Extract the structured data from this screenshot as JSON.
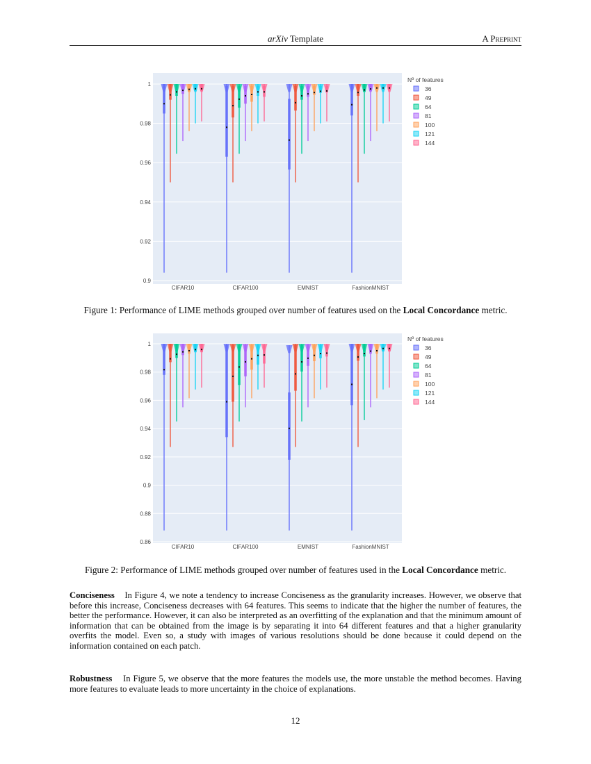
{
  "header": {
    "title_italic": "arXiv",
    "title_rest": " Template",
    "right": "A Preprint"
  },
  "chart_data": [
    {
      "type": "violin",
      "categories": [
        "CIFAR10",
        "CIFAR100",
        "EMNIST",
        "FashionMNIST"
      ],
      "legend_title": "Nº of features",
      "legend_placement": "right",
      "grid": true,
      "ylim": [
        0.9,
        1.0
      ],
      "yticks": [
        0.9,
        0.92,
        0.94,
        0.96,
        0.98,
        1
      ],
      "ytick_labels": [
        "0.9",
        "0.92",
        "0.94",
        "0.96",
        "0.98",
        "1"
      ],
      "stat_order": [
        "min",
        "q1",
        "median",
        "q3",
        "max"
      ],
      "series": [
        {
          "name": "36",
          "color": "#636efa",
          "values": [
            [
              0.904,
              0.985,
              0.99,
              1,
              1
            ],
            [
              0.904,
              0.963,
              0.978,
              0.999,
              1
            ],
            [
              0.904,
              0.9565,
              0.9715,
              0.9925,
              1
            ],
            [
              0.904,
              0.984,
              0.9895,
              1,
              1
            ]
          ]
        },
        {
          "name": "49",
          "color": "#ef553b",
          "values": [
            [
              0.95,
              0.992,
              0.9945,
              1,
              1
            ],
            [
              0.95,
              0.983,
              0.989,
              0.999,
              1
            ],
            [
              0.95,
              0.9865,
              0.9905,
              0.999,
              1
            ],
            [
              0.95,
              0.994,
              0.9957,
              1,
              1
            ]
          ]
        },
        {
          "name": "64",
          "color": "#00cc96",
          "values": [
            [
              0.9645,
              0.994,
              0.996,
              1,
              1
            ],
            [
              0.9645,
              0.988,
              0.9923,
              0.999,
              1
            ],
            [
              0.9645,
              0.992,
              0.994,
              0.999,
              1
            ],
            [
              0.9645,
              0.996,
              0.997,
              1,
              1
            ]
          ]
        },
        {
          "name": "81",
          "color": "#ab63fa",
          "values": [
            [
              0.971,
              0.995,
              0.9968,
              1,
              1
            ],
            [
              0.971,
              0.99,
              0.994,
              0.999,
              1
            ],
            [
              0.971,
              0.9935,
              0.995,
              0.999,
              1
            ],
            [
              0.971,
              0.9965,
              0.9975,
              1,
              1
            ]
          ]
        },
        {
          "name": "100",
          "color": "#ffa15a",
          "values": [
            [
              0.976,
              0.996,
              0.9973,
              1,
              1
            ],
            [
              0.976,
              0.991,
              0.9947,
              0.999,
              1
            ],
            [
              0.976,
              0.9945,
              0.9957,
              0.999,
              1
            ],
            [
              0.976,
              0.997,
              0.998,
              1,
              1
            ]
          ]
        },
        {
          "name": "121",
          "color": "#19d3f3",
          "values": [
            [
              0.98,
              0.9965,
              0.9976,
              1,
              1
            ],
            [
              0.98,
              0.994,
              0.996,
              0.999,
              1
            ],
            [
              0.98,
              0.9955,
              0.9963,
              0.999,
              1
            ],
            [
              0.98,
              0.997,
              0.998,
              1,
              1
            ]
          ]
        },
        {
          "name": "144",
          "color": "#ff6692",
          "values": [
            [
              0.981,
              0.9965,
              0.9976,
              1,
              1
            ],
            [
              0.981,
              0.9935,
              0.996,
              0.999,
              1
            ],
            [
              0.981,
              0.9957,
              0.9965,
              0.999,
              1
            ],
            [
              0.981,
              0.997,
              0.998,
              1,
              1
            ]
          ]
        }
      ]
    },
    {
      "type": "violin",
      "categories": [
        "CIFAR10",
        "CIFAR100",
        "EMNIST",
        "FashionMNIST"
      ],
      "legend_title": "Nº of features",
      "legend_placement": "right",
      "grid": true,
      "ylim": [
        0.86,
        1.0
      ],
      "yticks": [
        0.86,
        0.88,
        0.9,
        0.92,
        0.94,
        0.96,
        0.98,
        1
      ],
      "ytick_labels": [
        "0.86",
        "0.88",
        "0.9",
        "0.92",
        "0.94",
        "0.96",
        "0.98",
        "1"
      ],
      "stat_order": [
        "min",
        "q1",
        "median",
        "q3",
        "max"
      ],
      "series": [
        {
          "name": "36",
          "color": "#636efa",
          "values": [
            [
              0.868,
              0.978,
              0.9817,
              1,
              1
            ],
            [
              0.868,
              0.934,
              0.959,
              0.999,
              1
            ],
            [
              0.868,
              0.918,
              0.9402,
              0.9656,
              0.999
            ],
            [
              0.868,
              0.9566,
              0.9713,
              1,
              1
            ]
          ]
        },
        {
          "name": "49",
          "color": "#ef553b",
          "values": [
            [
              0.927,
              0.987,
              0.9894,
              1,
              1
            ],
            [
              0.927,
              0.959,
              0.977,
              0.999,
              1
            ],
            [
              0.927,
              0.9668,
              0.9787,
              0.999,
              1
            ],
            [
              0.927,
              0.988,
              0.9907,
              1,
              1
            ]
          ]
        },
        {
          "name": "64",
          "color": "#00cc96",
          "values": [
            [
              0.9451,
              0.99,
              0.9926,
              1,
              1
            ],
            [
              0.9451,
              0.9709,
              0.9836,
              0.999,
              1
            ],
            [
              0.9451,
              0.9804,
              0.9872,
              0.999,
              1
            ],
            [
              0.946,
              0.991,
              0.9931,
              1,
              1
            ]
          ]
        },
        {
          "name": "81",
          "color": "#ab63fa",
          "values": [
            [
              0.9551,
              0.992,
              0.9943,
              1,
              1
            ],
            [
              0.9551,
              0.977,
              0.9872,
              0.999,
              1
            ],
            [
              0.9551,
              0.9844,
              0.9898,
              0.999,
              1
            ],
            [
              0.9551,
              0.993,
              0.9948,
              1,
              1
            ]
          ]
        },
        {
          "name": "100",
          "color": "#ffa15a",
          "values": [
            [
              0.9615,
              0.993,
              0.9951,
              1,
              1
            ],
            [
              0.9615,
              0.9817,
              0.9894,
              0.999,
              1
            ],
            [
              0.9615,
              0.9877,
              0.9918,
              0.999,
              1
            ],
            [
              0.9615,
              0.993,
              0.9951,
              1,
              1
            ]
          ]
        },
        {
          "name": "121",
          "color": "#19d3f3",
          "values": [
            [
              0.9677,
              0.994,
              0.9959,
              1,
              1
            ],
            [
              0.9677,
              0.9853,
              0.9918,
              0.999,
              1
            ],
            [
              0.9677,
              0.9898,
              0.9931,
              0.999,
              1
            ],
            [
              0.9677,
              0.995,
              0.9967,
              1,
              1
            ]
          ]
        },
        {
          "name": "144",
          "color": "#ff6692",
          "values": [
            [
              0.969,
              0.994,
              0.996,
              1,
              1
            ],
            [
              0.969,
              0.986,
              0.9921,
              0.999,
              1
            ],
            [
              0.969,
              0.991,
              0.9934,
              0.999,
              1
            ],
            [
              0.969,
              0.995,
              0.9967,
              1,
              1
            ]
          ]
        }
      ]
    }
  ],
  "captions": [
    {
      "pre": "Figure 1: Performance of LIME methods grouped over number of features used on the ",
      "bold": "Local Concordance",
      "post": " metric."
    },
    {
      "pre": "Figure 2: Performance of LIME methods grouped over number of features used in the ",
      "bold": "Local Concordance",
      "post": " metric."
    }
  ],
  "paragraphs": [
    {
      "heading": "Conciseness",
      "text": "In Figure 4, we note a tendency to increase Conciseness as the granularity increases. However, we observe that before this increase, Conciseness decreases with 64 features. This seems to indicate that the higher the number of features, the better the performance. However, it can also be interpreted as an overfitting of the explanation and that the minimum amount of information that can be obtained from the image is by separating it into 64 different features and that a higher granularity overfits the model. Even so, a study with images of various resolutions should be done because it could depend on the information contained on each patch."
    },
    {
      "heading": "Robustness",
      "text": "In Figure 5, we observe that the more features the models use, the more unstable the method becomes. Having more features to evaluate leads to more uncertainty in the choice of explanations."
    }
  ],
  "page_number": "12"
}
